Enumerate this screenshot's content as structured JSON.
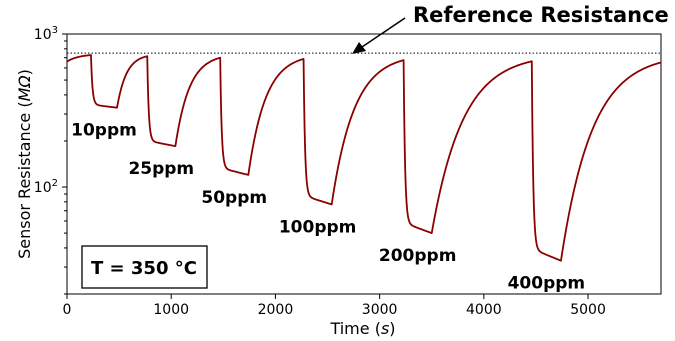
{
  "chart_data": {
    "type": "line",
    "xlabel": "Time",
    "xlabel_unit": "s",
    "ylabel": "Sensor Resistance",
    "ylabel_unit": "MΩ",
    "xlim": [
      0,
      5700
    ],
    "ylim": [
      20,
      1000
    ],
    "yscale": "log",
    "x_ticks": [
      0,
      1000,
      2000,
      3000,
      4000,
      5000
    ],
    "y_tick_labels": [
      {
        "value": 100,
        "base": "10",
        "exp": "2"
      },
      {
        "value": 1000,
        "base": "10",
        "exp": "3"
      }
    ],
    "reference_line": {
      "y": 750,
      "style": "dotted",
      "label": "Reference Resistance"
    },
    "temperature_box": "T = 350 °C",
    "series": [
      {
        "color": "#8b0000",
        "pulses": [
          {
            "label": "10ppm",
            "on": 230,
            "off": 480,
            "min": 330
          },
          {
            "label": "25ppm",
            "on": 770,
            "off": 1040,
            "min": 185
          },
          {
            "label": "50ppm",
            "on": 1470,
            "off": 1740,
            "min": 120
          },
          {
            "label": "100ppm",
            "on": 2270,
            "off": 2540,
            "min": 77
          },
          {
            "label": "200ppm",
            "on": 3230,
            "off": 3500,
            "min": 50
          },
          {
            "label": "400ppm",
            "on": 4460,
            "off": 4740,
            "min": 33
          }
        ],
        "baseline_start": 660,
        "baseline": 740
      }
    ],
    "grid": false
  }
}
